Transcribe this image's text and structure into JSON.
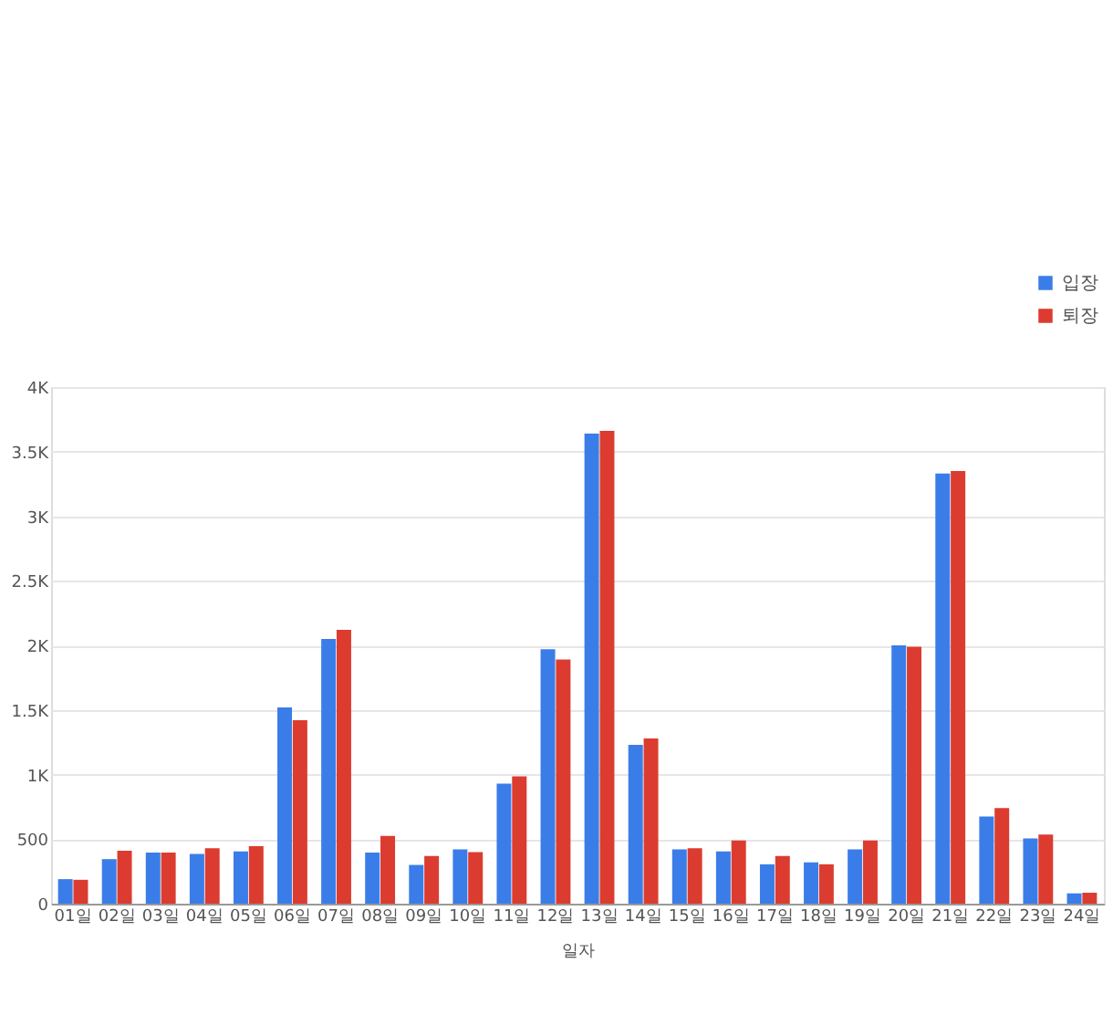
{
  "chart_data": {
    "type": "bar",
    "xlabel": "일자",
    "categories": [
      "01일",
      "02일",
      "03일",
      "04일",
      "05일",
      "06일",
      "07일",
      "08일",
      "09일",
      "10일",
      "11일",
      "12일",
      "13일",
      "14일",
      "15일",
      "16일",
      "17일",
      "18일",
      "19일",
      "20일",
      "21일",
      "22일",
      "23일",
      "24일"
    ],
    "series": [
      {
        "name": "입장",
        "color": "#3b7de8",
        "values": [
          190,
          345,
          395,
          385,
          405,
          1520,
          2050,
          395,
          300,
          420,
          930,
          1970,
          3640,
          1230,
          420,
          405,
          305,
          320,
          420,
          2000,
          3330,
          675,
          505,
          80
        ]
      },
      {
        "name": "퇴장",
        "color": "#dc3c2f",
        "values": [
          185,
          410,
          395,
          430,
          445,
          1420,
          2120,
          525,
          370,
          400,
          985,
          1890,
          3660,
          1280,
          430,
          490,
          370,
          305,
          490,
          1990,
          3350,
          740,
          535,
          85
        ]
      }
    ],
    "ylim": [
      0,
      4000
    ],
    "yticks": [
      0,
      500,
      {
        "value": 1000,
        "label": "1K"
      },
      {
        "value": 1500,
        "label": "1.5K"
      },
      {
        "value": 2000,
        "label": "2K"
      },
      {
        "value": 2500,
        "label": "2.5K"
      },
      {
        "value": 3000,
        "label": "3K"
      },
      {
        "value": 3500,
        "label": "3.5K"
      },
      {
        "value": 4000,
        "label": "4K"
      }
    ],
    "grid": "y",
    "legend": "top right"
  }
}
